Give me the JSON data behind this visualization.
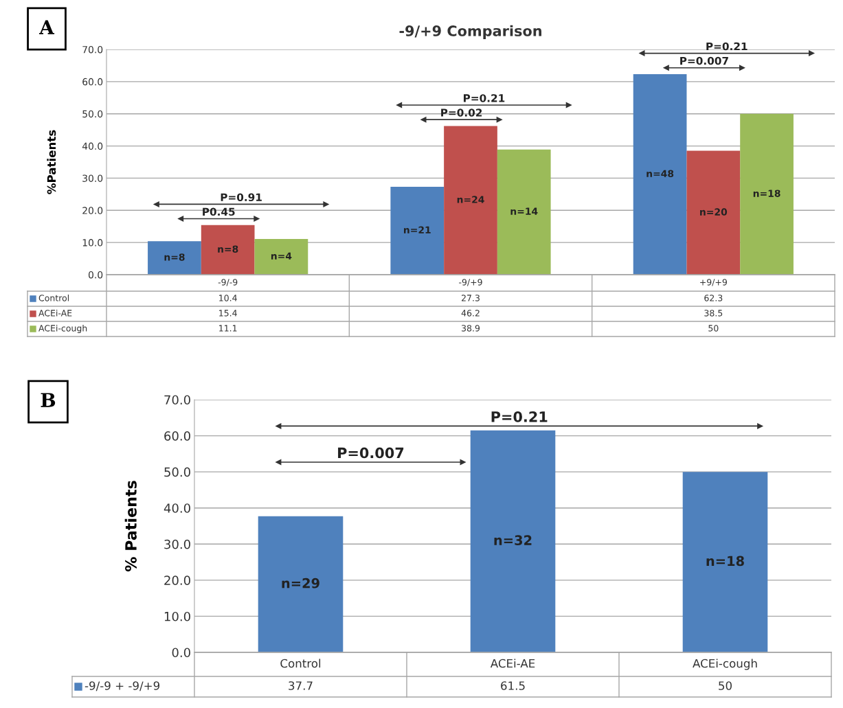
{
  "chart_data": [
    {
      "type": "bar",
      "title": "-9/+9 Comparison",
      "ylabel": "%Patients",
      "categories": [
        "-9/-9",
        "-9/+9",
        "+9/+9"
      ],
      "series": [
        {
          "name": "Control",
          "color": "#4f81bd",
          "values": [
            10.4,
            27.3,
            62.3
          ]
        },
        {
          "name": "ACEi-AE",
          "color": "#c0504d",
          "values": [
            15.4,
            46.2,
            38.5
          ]
        },
        {
          "name": "ACEi-cough",
          "color": "#9bbb59",
          "values": [
            11.1,
            38.9,
            50
          ]
        }
      ],
      "ylim": [
        0,
        70
      ],
      "yticks": [
        {
          "value": 0,
          "label": "0.0"
        },
        {
          "value": 10,
          "label": "10.0"
        },
        {
          "value": 20,
          "label": "20.0"
        },
        {
          "value": 30,
          "label": "30.0"
        },
        {
          "value": 40,
          "label": "40.0"
        },
        {
          "value": 50,
          "label": "50.0"
        },
        {
          "value": 60,
          "label": "60.0"
        },
        {
          "value": 70,
          "label": "70.0"
        }
      ],
      "grid": "y",
      "legend": "bottom",
      "data_labels": true,
      "annotations": [
        "A",
        "n=8",
        "n=8",
        "n=4",
        "n=21",
        "n=24",
        "n=14",
        "n=48",
        "n=20",
        "n=18",
        "P=0.91",
        "P0.45",
        "P=0.21",
        "P=0.02",
        "P=0.21",
        "P=0.007"
      ]
    },
    {
      "type": "bar",
      "ylabel": "% Patients",
      "categories": [
        "Control",
        "ACEi-AE",
        "ACEi-cough"
      ],
      "series": [
        {
          "name": "-9/-9 + -9/+9",
          "color": "#4f81bd",
          "values": [
            37.7,
            61.5,
            50
          ]
        }
      ],
      "ylim": [
        0,
        70
      ],
      "yticks": [
        {
          "value": 0,
          "label": "0.0"
        },
        {
          "value": 10,
          "label": "10.0"
        },
        {
          "value": 20,
          "label": "20.0"
        },
        {
          "value": 30,
          "label": "30.0"
        },
        {
          "value": 40,
          "label": "40.0"
        },
        {
          "value": 50,
          "label": "50.0"
        },
        {
          "value": 60,
          "label": "60.0"
        },
        {
          "value": 70,
          "label": "70.0"
        }
      ],
      "grid": "y",
      "legend": "bottom",
      "data_labels": true,
      "annotations": [
        "B",
        "n=29",
        "n=32",
        "n=18",
        "P=0.21",
        "P=0.007"
      ]
    }
  ]
}
